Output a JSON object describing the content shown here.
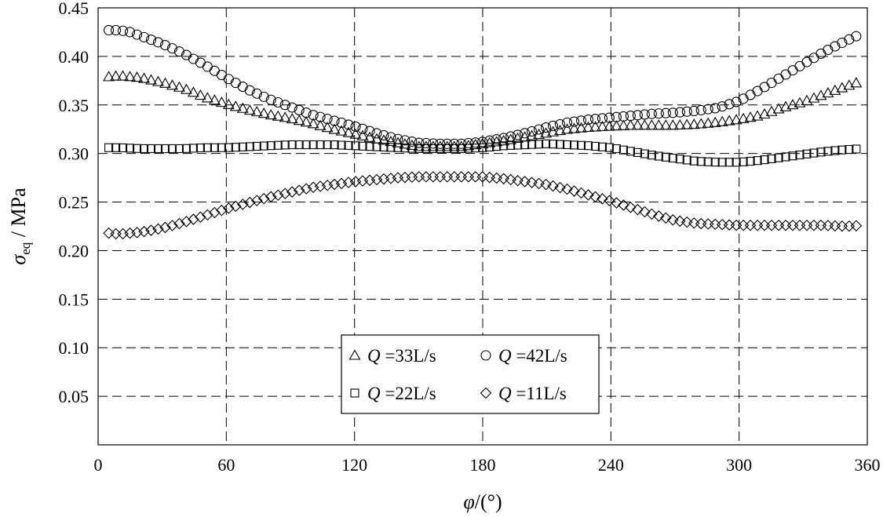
{
  "chart_data": {
    "type": "scatter",
    "xlabel": "φ/(°)",
    "ylabel": "σeq / MPa",
    "ylabel_parts": {
      "symbol": "σ",
      "subscript": "eq",
      "unit": " / MPa"
    },
    "xlabel_parts": {
      "symbol": "φ",
      "unit": "/(°)"
    },
    "xlim": [
      0,
      360
    ],
    "ylim": [
      0,
      0.45
    ],
    "x_ticks": [
      "0",
      "60",
      "120",
      "180",
      "240",
      "300",
      "360"
    ],
    "y_ticks": [
      "0.05",
      "0.10",
      "0.15",
      "0.20",
      "0.25",
      "0.30",
      "0.35",
      "0.40",
      "0.45"
    ],
    "grid": true,
    "legend_position": "lower-center",
    "series": [
      {
        "name": "Q =33L/s",
        "name_parts": {
          "symbol": "Q",
          "text": " =33L/s"
        },
        "marker": "triangle",
        "points": [
          [
            5,
            0.379
          ],
          [
            10,
            0.38
          ],
          [
            15,
            0.379
          ],
          [
            20,
            0.378
          ],
          [
            30,
            0.373
          ],
          [
            40,
            0.367
          ],
          [
            50,
            0.358
          ],
          [
            60,
            0.351
          ],
          [
            70,
            0.345
          ],
          [
            80,
            0.34
          ],
          [
            90,
            0.336
          ],
          [
            100,
            0.331
          ],
          [
            110,
            0.325
          ],
          [
            120,
            0.32
          ],
          [
            130,
            0.315
          ],
          [
            140,
            0.311
          ],
          [
            150,
            0.307
          ],
          [
            160,
            0.307
          ],
          [
            170,
            0.307
          ],
          [
            180,
            0.31
          ],
          [
            190,
            0.313
          ],
          [
            200,
            0.317
          ],
          [
            210,
            0.321
          ],
          [
            220,
            0.325
          ],
          [
            230,
            0.327
          ],
          [
            240,
            0.328
          ],
          [
            250,
            0.329
          ],
          [
            260,
            0.329
          ],
          [
            270,
            0.329
          ],
          [
            280,
            0.33
          ],
          [
            290,
            0.332
          ],
          [
            300,
            0.335
          ],
          [
            310,
            0.339
          ],
          [
            320,
            0.347
          ],
          [
            330,
            0.353
          ],
          [
            340,
            0.361
          ],
          [
            350,
            0.369
          ],
          [
            358,
            0.375
          ]
        ]
      },
      {
        "name": "Q =42L/s",
        "name_parts": {
          "symbol": "Q",
          "text": " =42L/s"
        },
        "marker": "circle",
        "points": [
          [
            5,
            0.427
          ],
          [
            10,
            0.427
          ],
          [
            15,
            0.425
          ],
          [
            20,
            0.421
          ],
          [
            30,
            0.413
          ],
          [
            40,
            0.403
          ],
          [
            50,
            0.391
          ],
          [
            60,
            0.378
          ],
          [
            70,
            0.366
          ],
          [
            80,
            0.356
          ],
          [
            90,
            0.348
          ],
          [
            100,
            0.34
          ],
          [
            110,
            0.334
          ],
          [
            120,
            0.328
          ],
          [
            130,
            0.321
          ],
          [
            140,
            0.315
          ],
          [
            150,
            0.311
          ],
          [
            160,
            0.31
          ],
          [
            170,
            0.31
          ],
          [
            180,
            0.312
          ],
          [
            190,
            0.316
          ],
          [
            200,
            0.321
          ],
          [
            210,
            0.327
          ],
          [
            220,
            0.332
          ],
          [
            230,
            0.335
          ],
          [
            240,
            0.337
          ],
          [
            250,
            0.339
          ],
          [
            260,
            0.341
          ],
          [
            270,
            0.342
          ],
          [
            280,
            0.344
          ],
          [
            290,
            0.347
          ],
          [
            300,
            0.354
          ],
          [
            310,
            0.366
          ],
          [
            320,
            0.379
          ],
          [
            330,
            0.392
          ],
          [
            340,
            0.405
          ],
          [
            350,
            0.416
          ],
          [
            358,
            0.424
          ]
        ]
      },
      {
        "name": "Q =22L/s",
        "name_parts": {
          "symbol": "Q",
          "text": " =22L/s"
        },
        "marker": "square",
        "points": [
          [
            5,
            0.306
          ],
          [
            10,
            0.306
          ],
          [
            20,
            0.305
          ],
          [
            30,
            0.305
          ],
          [
            40,
            0.305
          ],
          [
            50,
            0.306
          ],
          [
            60,
            0.306
          ],
          [
            70,
            0.307
          ],
          [
            80,
            0.308
          ],
          [
            90,
            0.309
          ],
          [
            100,
            0.309
          ],
          [
            110,
            0.309
          ],
          [
            120,
            0.308
          ],
          [
            130,
            0.307
          ],
          [
            140,
            0.306
          ],
          [
            150,
            0.305
          ],
          [
            160,
            0.305
          ],
          [
            170,
            0.305
          ],
          [
            180,
            0.306
          ],
          [
            190,
            0.308
          ],
          [
            200,
            0.309
          ],
          [
            210,
            0.31
          ],
          [
            220,
            0.309
          ],
          [
            230,
            0.308
          ],
          [
            240,
            0.306
          ],
          [
            250,
            0.302
          ],
          [
            260,
            0.298
          ],
          [
            270,
            0.295
          ],
          [
            280,
            0.292
          ],
          [
            290,
            0.291
          ],
          [
            300,
            0.291
          ],
          [
            310,
            0.293
          ],
          [
            320,
            0.296
          ],
          [
            330,
            0.299
          ],
          [
            340,
            0.302
          ],
          [
            350,
            0.304
          ],
          [
            358,
            0.305
          ]
        ]
      },
      {
        "name": "Q =11L/s",
        "name_parts": {
          "symbol": "Q",
          "text": " =11L/s"
        },
        "marker": "diamond",
        "points": [
          [
            5,
            0.218
          ],
          [
            10,
            0.217
          ],
          [
            20,
            0.219
          ],
          [
            30,
            0.223
          ],
          [
            40,
            0.229
          ],
          [
            50,
            0.236
          ],
          [
            60,
            0.243
          ],
          [
            70,
            0.249
          ],
          [
            80,
            0.255
          ],
          [
            90,
            0.26
          ],
          [
            100,
            0.265
          ],
          [
            110,
            0.268
          ],
          [
            120,
            0.271
          ],
          [
            130,
            0.273
          ],
          [
            140,
            0.275
          ],
          [
            150,
            0.276
          ],
          [
            160,
            0.276
          ],
          [
            170,
            0.276
          ],
          [
            180,
            0.276
          ],
          [
            190,
            0.274
          ],
          [
            200,
            0.271
          ],
          [
            210,
            0.268
          ],
          [
            220,
            0.263
          ],
          [
            230,
            0.257
          ],
          [
            240,
            0.251
          ],
          [
            250,
            0.244
          ],
          [
            260,
            0.237
          ],
          [
            270,
            0.231
          ],
          [
            280,
            0.228
          ],
          [
            290,
            0.227
          ],
          [
            300,
            0.226
          ],
          [
            310,
            0.226
          ],
          [
            320,
            0.226
          ],
          [
            330,
            0.226
          ],
          [
            340,
            0.226
          ],
          [
            350,
            0.225
          ],
          [
            358,
            0.226
          ]
        ]
      }
    ]
  }
}
